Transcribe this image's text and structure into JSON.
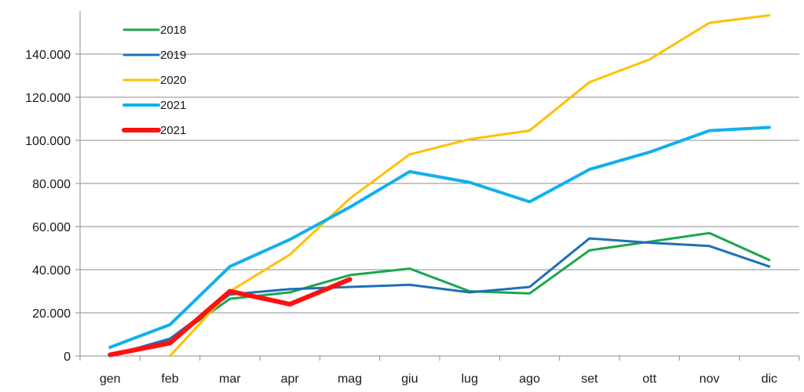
{
  "chart_data": {
    "type": "line",
    "title": "",
    "xlabel": "",
    "ylabel": "",
    "categories": [
      "gen",
      "feb",
      "mar",
      "apr",
      "mag",
      "giu",
      "lug",
      "ago",
      "set",
      "ott",
      "nov",
      "dic"
    ],
    "ylim": [
      0,
      160000
    ],
    "yticks": [
      0,
      20000,
      40000,
      60000,
      80000,
      100000,
      120000,
      140000
    ],
    "ytick_labels": [
      "0",
      "20.000",
      "40.000",
      "60.000",
      "80.000",
      "100.000",
      "120.000",
      "140.000"
    ],
    "grid": true,
    "legend_position": "top-left",
    "series": [
      {
        "name": "2018",
        "color": "#1aa64b",
        "width": 3,
        "values": [
          0,
          7000,
          26500,
          29500,
          37500,
          40500,
          30000,
          29000,
          49000,
          53000,
          57000,
          44500
        ]
      },
      {
        "name": "2019",
        "color": "#1f6fb8",
        "width": 3,
        "values": [
          0,
          8000,
          28500,
          31000,
          32000,
          33000,
          29500,
          32000,
          54500,
          52500,
          51000,
          41500
        ]
      },
      {
        "name": "2020",
        "color": "#ffc000",
        "width": 3,
        "values": [
          null,
          0,
          30000,
          47000,
          73000,
          93500,
          100500,
          104500,
          127000,
          137500,
          154500,
          158000
        ]
      },
      {
        "name": "2021",
        "color": "#12b0ec",
        "width": 4,
        "values": [
          4000,
          14500,
          41500,
          54000,
          69000,
          85500,
          80500,
          71500,
          86500,
          94500,
          104500,
          106000
        ]
      },
      {
        "name": "2021",
        "color": "#ff1010",
        "width": 6,
        "values": [
          500,
          6000,
          30000,
          24000,
          35500,
          null,
          null,
          null,
          null,
          null,
          null,
          null
        ]
      }
    ]
  }
}
